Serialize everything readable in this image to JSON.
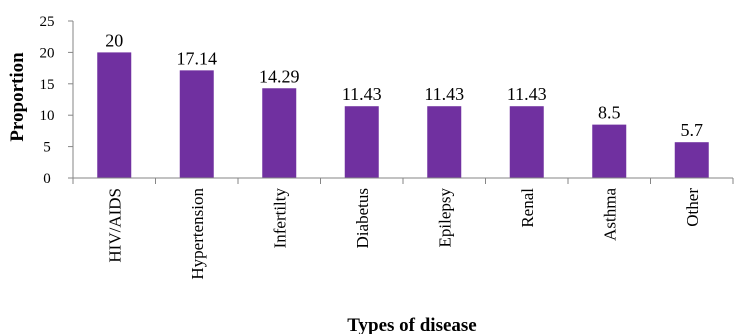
{
  "chart_data": {
    "type": "bar",
    "categories": [
      "HIV/AIDS",
      "Hypertension",
      "Infertilty",
      "Diabetus",
      "Epilepsy",
      "Renal",
      "Asthma",
      "Other"
    ],
    "values": [
      20,
      17.14,
      14.29,
      11.43,
      11.43,
      11.43,
      8.5,
      5.7
    ],
    "data_labels": [
      "20",
      "17.14",
      "14.29",
      "11.43",
      "11.43",
      "11.43",
      "8.5",
      "5.7"
    ],
    "xlabel": "Types of disease",
    "ylabel": "Proportion",
    "ylim": [
      0,
      25
    ],
    "yticks": [
      0,
      5,
      10,
      15,
      20,
      25
    ],
    "grid": false,
    "bar_color": "#7030a0"
  }
}
